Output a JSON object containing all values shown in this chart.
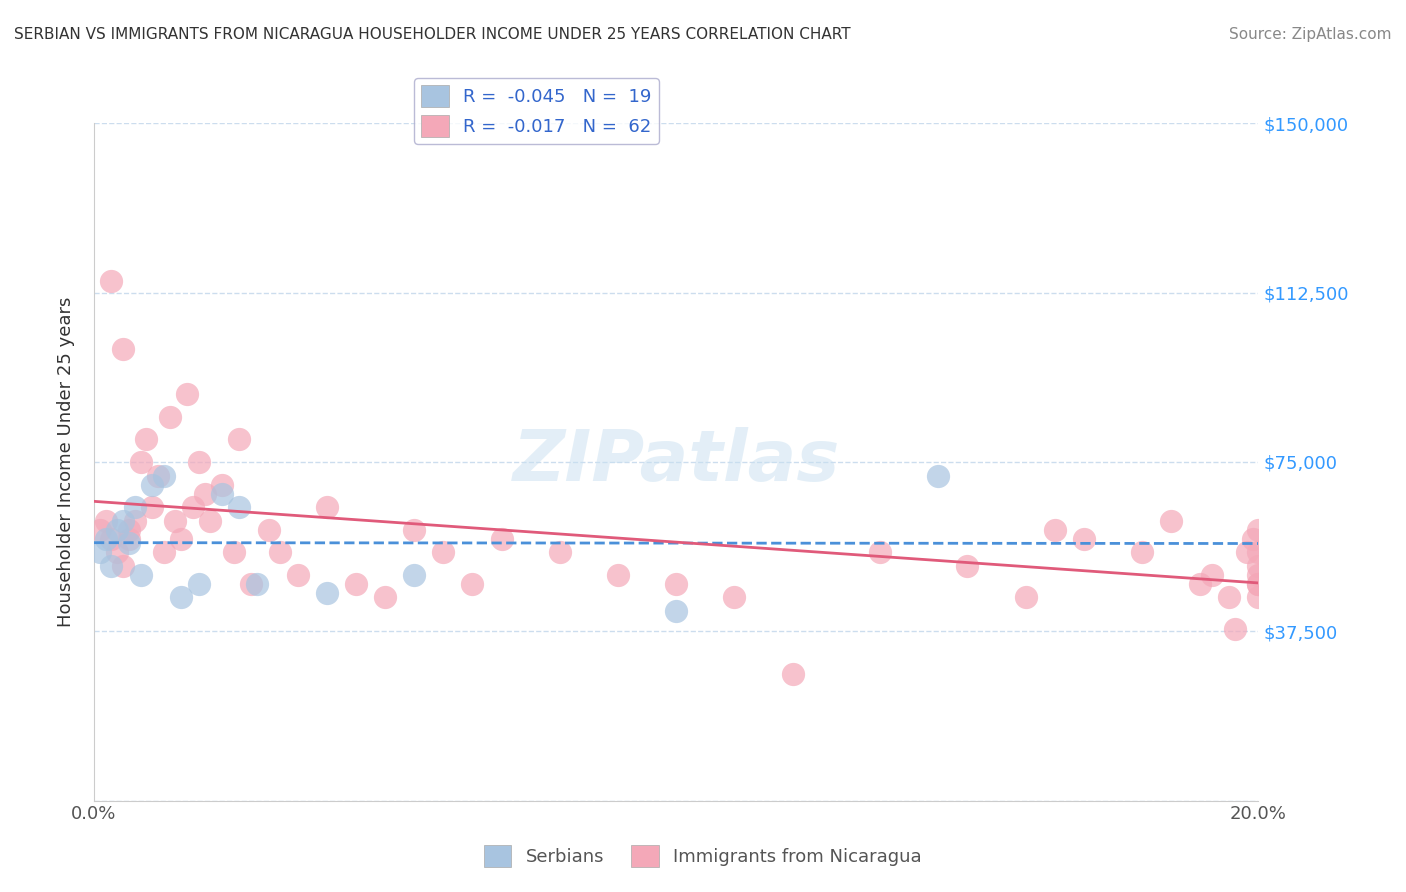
{
  "title": "SERBIAN VS IMMIGRANTS FROM NICARAGUA HOUSEHOLDER INCOME UNDER 25 YEARS CORRELATION CHART",
  "source": "Source: ZipAtlas.com",
  "ylabel": "Householder Income Under 25 years",
  "ytick_vals": [
    0,
    37500,
    75000,
    112500,
    150000
  ],
  "ytick_labels": [
    "",
    "$37,500",
    "$75,000",
    "$112,500",
    "$150,000"
  ],
  "legend_serbian_r": "-0.045",
  "legend_serbian_n": "19",
  "legend_nicaragua_r": "-0.017",
  "legend_nicaragua_n": "62",
  "legend_label_serbian": "Serbians",
  "legend_label_nicaragua": "Immigrants from Nicaragua",
  "serbian_color": "#a8c4e0",
  "nicaragua_color": "#f4a8b8",
  "serbian_line_color": "#4a90d9",
  "nicaragua_line_color": "#e05a7a",
  "watermark": "ZIPatlas",
  "watermark_color": "#c8dff0",
  "bg_color": "#ffffff",
  "xlim": [
    0,
    0.2
  ],
  "ylim": [
    0,
    150000
  ],
  "serbian_x": [
    0.001,
    0.002,
    0.003,
    0.004,
    0.005,
    0.006,
    0.007,
    0.008,
    0.01,
    0.012,
    0.015,
    0.018,
    0.022,
    0.025,
    0.028,
    0.04,
    0.055,
    0.1,
    0.145
  ],
  "serbian_y": [
    55000,
    58000,
    52000,
    60000,
    62000,
    57000,
    65000,
    50000,
    70000,
    72000,
    45000,
    48000,
    68000,
    65000,
    48000,
    46000,
    50000,
    42000,
    72000
  ],
  "nicaragua_x": [
    0.001,
    0.002,
    0.003,
    0.003,
    0.004,
    0.005,
    0.005,
    0.006,
    0.006,
    0.007,
    0.008,
    0.009,
    0.01,
    0.011,
    0.012,
    0.013,
    0.014,
    0.015,
    0.016,
    0.017,
    0.018,
    0.019,
    0.02,
    0.022,
    0.024,
    0.025,
    0.027,
    0.03,
    0.032,
    0.035,
    0.04,
    0.045,
    0.05,
    0.055,
    0.06,
    0.065,
    0.07,
    0.08,
    0.09,
    0.1,
    0.11,
    0.12,
    0.135,
    0.15,
    0.16,
    0.165,
    0.17,
    0.18,
    0.185,
    0.19,
    0.192,
    0.195,
    0.196,
    0.198,
    0.199,
    0.2,
    0.2,
    0.2,
    0.2,
    0.2,
    0.2,
    0.2
  ],
  "nicaragua_y": [
    60000,
    62000,
    58000,
    115000,
    55000,
    100000,
    52000,
    58000,
    60000,
    62000,
    75000,
    80000,
    65000,
    72000,
    55000,
    85000,
    62000,
    58000,
    90000,
    65000,
    75000,
    68000,
    62000,
    70000,
    55000,
    80000,
    48000,
    60000,
    55000,
    50000,
    65000,
    48000,
    45000,
    60000,
    55000,
    48000,
    58000,
    55000,
    50000,
    48000,
    45000,
    28000,
    55000,
    52000,
    45000,
    60000,
    58000,
    55000,
    62000,
    48000,
    50000,
    45000,
    38000,
    55000,
    58000,
    48000,
    52000,
    45000,
    60000,
    55000,
    50000,
    48000
  ]
}
